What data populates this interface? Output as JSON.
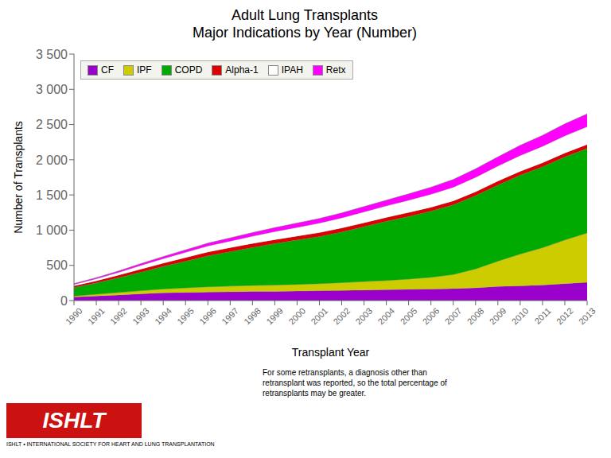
{
  "chart_data": {
    "type": "area",
    "stacked": true,
    "title": "Adult Lung Transplants",
    "subtitle": "Major Indications by Year (Number)",
    "x_label": "Transplant Year",
    "y_label": "Number of Transplants",
    "x": [
      1990,
      1991,
      1992,
      1993,
      1994,
      1995,
      1996,
      1997,
      1998,
      1999,
      2000,
      2001,
      2002,
      2003,
      2004,
      2005,
      2006,
      2007,
      2008,
      2009,
      2010,
      2011,
      2012,
      2013
    ],
    "xlim": [
      1990,
      2013
    ],
    "xticks": [
      1990,
      1991,
      1992,
      1993,
      1994,
      1995,
      1996,
      1997,
      1998,
      1999,
      2000,
      2001,
      2002,
      2003,
      2004,
      2005,
      2006,
      2007,
      2008,
      2009,
      2010,
      2011,
      2012,
      2013
    ],
    "ylim": [
      0,
      3500
    ],
    "yticks": [
      0,
      500,
      {
        "value": 1000,
        "label": "1 000"
      },
      {
        "value": 1500,
        "label": "1 500"
      },
      {
        "value": 2000,
        "label": "2 000"
      },
      {
        "value": 2500,
        "label": "2 500"
      },
      {
        "value": 3000,
        "label": "3 000"
      },
      {
        "value": 3500,
        "label": "3 500"
      }
    ],
    "series": [
      {
        "name": "CF",
        "color": "#9900cc",
        "values": [
          50,
          65,
          80,
          95,
          110,
          115,
          120,
          125,
          130,
          130,
          135,
          140,
          145,
          150,
          155,
          160,
          165,
          170,
          180,
          200,
          210,
          220,
          240,
          260
        ]
      },
      {
        "name": "IPF",
        "color": "#cccc00",
        "values": [
          15,
          25,
          35,
          45,
          55,
          65,
          75,
          80,
          85,
          90,
          95,
          100,
          110,
          120,
          130,
          145,
          165,
          200,
          270,
          360,
          450,
          530,
          620,
          700
        ]
      },
      {
        "name": "COPD",
        "color": "#00aa00",
        "values": [
          120,
          160,
          210,
          265,
          320,
          380,
          440,
          490,
          540,
          590,
          630,
          670,
          720,
          780,
          840,
          890,
          940,
          990,
          1040,
          1080,
          1120,
          1150,
          1180,
          1200
        ]
      },
      {
        "name": "Alpha-1",
        "color": "#dd0000",
        "values": [
          25,
          30,
          35,
          40,
          45,
          50,
          55,
          55,
          55,
          55,
          55,
          55,
          55,
          55,
          55,
          55,
          55,
          55,
          55,
          55,
          55,
          55,
          55,
          55
        ]
      },
      {
        "name": "IPAH",
        "color": "#ffffff",
        "values": [
          20,
          30,
          40,
          55,
          65,
          75,
          85,
          95,
          105,
          115,
          125,
          135,
          145,
          155,
          165,
          175,
          185,
          195,
          205,
          215,
          225,
          235,
          245,
          255
        ]
      },
      {
        "name": "Retx",
        "color": "#ff00ff",
        "values": [
          10,
          15,
          20,
          25,
          30,
          35,
          40,
          45,
          50,
          55,
          60,
          65,
          70,
          75,
          80,
          90,
          100,
          110,
          120,
          130,
          145,
          155,
          170,
          180
        ]
      }
    ],
    "legend": "upper left",
    "grid": false,
    "annotations": [
      "For some retransplants, a diagnosis other than\nretransplant was reported, so the total percentage of\nretransplants may be greater.",
      "ISHLT",
      "ISHLT • INTERNATIONAL SOCIETY FOR HEART AND LUNG TRANSPLANTATION"
    ]
  }
}
